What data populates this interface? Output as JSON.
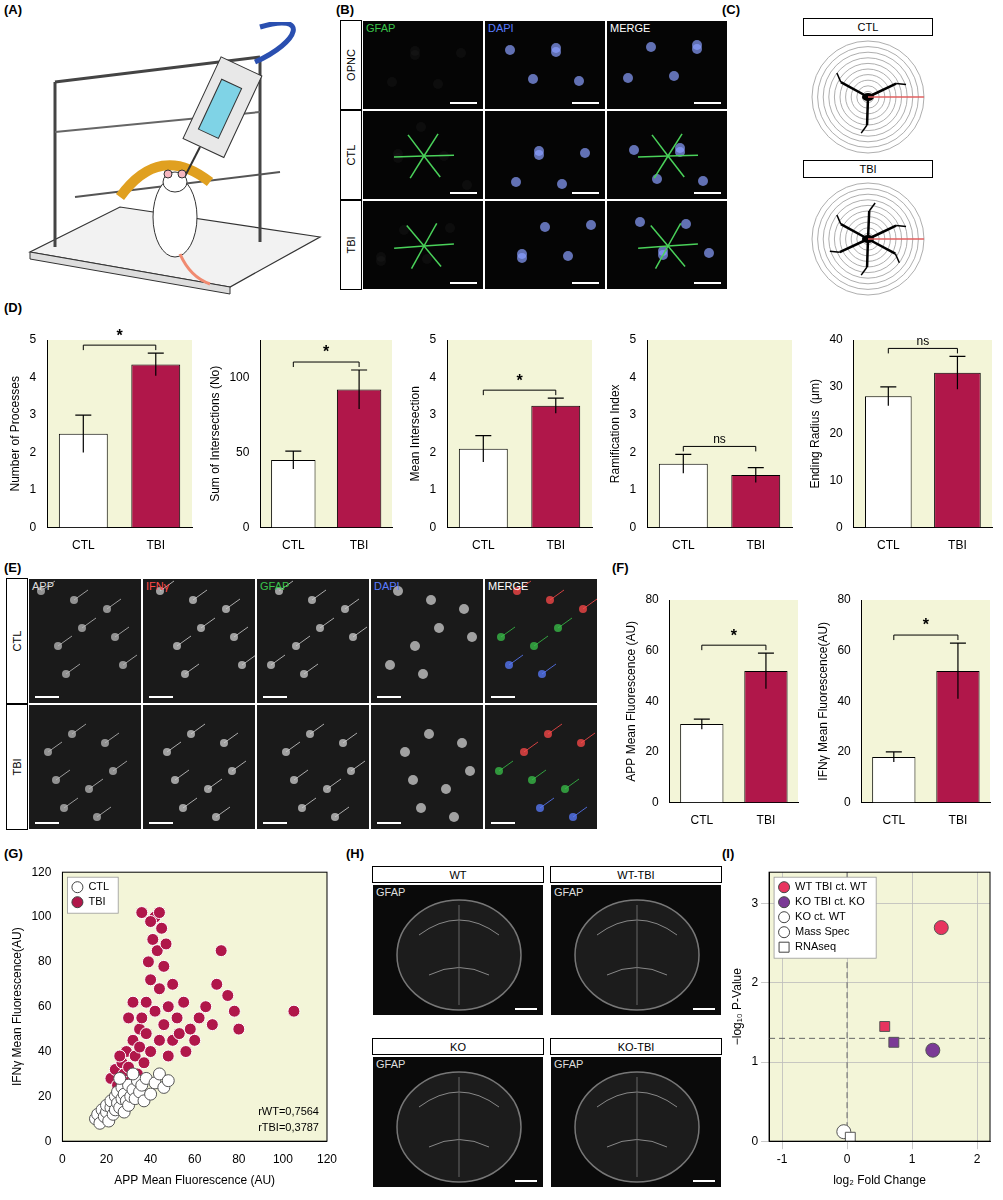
{
  "figure": {
    "A": {
      "label": "(A)"
    },
    "B": {
      "label": "(B)",
      "columns": [
        "GFAP",
        "DAPI",
        "MERGE"
      ],
      "rows": [
        "OPNC",
        "CTL",
        "TBI"
      ]
    },
    "C": {
      "label": "(C)",
      "rows": [
        "CTL",
        "TBI"
      ]
    },
    "D": {
      "label": "(D)"
    },
    "E": {
      "label": "(E)",
      "columns": [
        "APP",
        "IFNγ",
        "GFAP",
        "DAPI",
        "MERGE"
      ],
      "rows": [
        "CTL",
        "TBI"
      ]
    },
    "F": {
      "label": "(F)"
    },
    "G": {
      "label": "(G)"
    },
    "H": {
      "label": "(H)",
      "images": [
        {
          "title": "WT",
          "stain": "GFAP"
        },
        {
          "title": "WT-TBI",
          "stain": "GFAP"
        },
        {
          "title": "KO",
          "stain": "GFAP"
        },
        {
          "title": "KO-TBI",
          "stain": "GFAP"
        }
      ]
    },
    "I": {
      "label": "(I)"
    }
  },
  "chart_data": [
    {
      "panel": "D",
      "type": "bar",
      "y_label": "Number of Processes",
      "categories": [
        "CTL",
        "TBI"
      ],
      "values": [
        2.5,
        4.35
      ],
      "errors": [
        0.5,
        0.3
      ],
      "colors": [
        "#ffffff",
        "#b0174a"
      ],
      "ylim": [
        0,
        5
      ],
      "yticks": [
        0,
        1,
        2,
        3,
        4,
        5
      ],
      "grid": false,
      "annotation": "*"
    },
    {
      "panel": "D",
      "type": "bar",
      "y_label": "Sum of Intersections (No)",
      "categories": [
        "CTL",
        "TBI"
      ],
      "values": [
        45,
        92
      ],
      "errors": [
        6,
        13
      ],
      "colors": [
        "#ffffff",
        "#b0174a"
      ],
      "ylim": [
        0,
        125
      ],
      "yticks": [
        0,
        50,
        100
      ],
      "grid": false,
      "annotation": "*"
    },
    {
      "panel": "D",
      "type": "bar",
      "y_label": "Mean Intersection",
      "categories": [
        "CTL",
        "TBI"
      ],
      "values": [
        2.1,
        3.25
      ],
      "errors": [
        0.35,
        0.2
      ],
      "colors": [
        "#ffffff",
        "#b0174a"
      ],
      "ylim": [
        0,
        5
      ],
      "yticks": [
        0,
        1,
        2,
        3,
        4,
        5
      ],
      "grid": false,
      "annotation": "*"
    },
    {
      "panel": "D",
      "type": "bar",
      "y_label": "Ramification Index",
      "categories": [
        "CTL",
        "TBI"
      ],
      "values": [
        1.7,
        1.4
      ],
      "errors": [
        0.25,
        0.2
      ],
      "colors": [
        "#ffffff",
        "#b0174a"
      ],
      "ylim": [
        0,
        5
      ],
      "yticks": [
        0,
        1,
        2,
        3,
        4,
        5
      ],
      "grid": false,
      "annotation": "ns"
    },
    {
      "panel": "D",
      "type": "bar",
      "y_label": "Ending Radius  (μm)",
      "categories": [
        "CTL",
        "TBI"
      ],
      "values": [
        28,
        33
      ],
      "errors": [
        2,
        3.5
      ],
      "colors": [
        "#ffffff",
        "#b0174a"
      ],
      "ylim": [
        0,
        40
      ],
      "yticks": [
        0,
        10,
        20,
        30,
        40
      ],
      "grid": false,
      "annotation": "ns"
    },
    {
      "panel": "F",
      "type": "bar",
      "y_label": "APP Mean Fluorescence (AU)",
      "categories": [
        "CTL",
        "TBI"
      ],
      "values": [
        31,
        52
      ],
      "errors": [
        2,
        7
      ],
      "colors": [
        "#ffffff",
        "#b0174a"
      ],
      "ylim": [
        0,
        80
      ],
      "yticks": [
        0,
        20,
        40,
        60,
        80
      ],
      "grid": false,
      "annotation": "*"
    },
    {
      "panel": "F",
      "type": "bar",
      "y_label": "IFNγ Mean Fluorescence(AU)",
      "categories": [
        "CTL",
        "TBI"
      ],
      "values": [
        18,
        52
      ],
      "errors": [
        2,
        11
      ],
      "colors": [
        "#ffffff",
        "#b0174a"
      ],
      "ylim": [
        0,
        80
      ],
      "yticks": [
        0,
        20,
        40,
        60,
        80
      ],
      "grid": false,
      "annotation": "*"
    },
    {
      "panel": "G",
      "type": "scatter",
      "x_label": "APP Mean Fluorescence (AU)",
      "y_label": "IFNγ Mean Fluorescence(AU)",
      "xlim": [
        0,
        120
      ],
      "xticks": [
        0,
        20,
        40,
        60,
        80,
        100,
        120
      ],
      "ylim": [
        0,
        120
      ],
      "yticks": [
        0,
        20,
        40,
        60,
        80,
        100,
        120
      ],
      "grid": false,
      "legend": "upper left",
      "annotations": [
        "rWT=0,7564",
        "rTBI=0,3787"
      ],
      "series": [
        {
          "name": "CTL",
          "color": "#ffffff",
          "x": [
            15,
            16,
            17,
            18,
            19,
            20,
            20,
            21,
            22,
            22,
            23,
            24,
            24,
            25,
            25,
            26,
            27,
            27,
            28,
            28,
            29,
            30,
            30,
            31,
            32,
            33,
            34,
            35,
            36,
            37,
            38,
            40,
            42,
            44,
            46,
            48,
            26,
            32
          ],
          "y": [
            10,
            12,
            8,
            14,
            11,
            13,
            16,
            9,
            15,
            18,
            12,
            20,
            14,
            17,
            22,
            15,
            19,
            24,
            13,
            21,
            18,
            25,
            16,
            20,
            23,
            19,
            27,
            22,
            25,
            18,
            28,
            21,
            26,
            30,
            24,
            27,
            28,
            30
          ]
        },
        {
          "name": "TBI",
          "color": "#b0174a",
          "x": [
            22,
            24,
            25,
            27,
            28,
            29,
            30,
            31,
            32,
            33,
            34,
            35,
            35,
            36,
            37,
            38,
            38,
            39,
            40,
            40,
            41,
            42,
            42,
            43,
            44,
            44,
            45,
            46,
            46,
            47,
            48,
            48,
            50,
            50,
            52,
            53,
            55,
            56,
            58,
            60,
            62,
            65,
            68,
            70,
            72,
            75,
            78,
            80,
            105,
            36,
            40,
            44,
            30,
            32,
            26
          ],
          "y": [
            28,
            32,
            25,
            35,
            30,
            40,
            33,
            27,
            45,
            38,
            30,
            50,
            42,
            55,
            35,
            62,
            48,
            80,
            40,
            72,
            90,
            100,
            58,
            85,
            45,
            68,
            95,
            78,
            52,
            88,
            60,
            38,
            70,
            45,
            55,
            48,
            62,
            40,
            50,
            45,
            55,
            60,
            52,
            70,
            85,
            65,
            58,
            50,
            58,
            102,
            98,
            102,
            55,
            62,
            38
          ]
        }
      ]
    },
    {
      "panel": "I",
      "type": "scatter",
      "x_label": "log₂ Fold Change",
      "y_label": "−log₁₀ P-Value",
      "xlim": [
        -1.2,
        2.2
      ],
      "xticks": [
        -1,
        0,
        1,
        2
      ],
      "ylim": [
        0,
        3.4
      ],
      "yticks": [
        0,
        1,
        2,
        3
      ],
      "grid": true,
      "legend": "upper left",
      "reference_lines": [
        {
          "axis": "y",
          "value": 1.3,
          "line_style": "dashed"
        },
        {
          "axis": "x",
          "value": 0,
          "line_style": "dashed"
        }
      ],
      "series": [
        {
          "name": "WT TBI ct. WT",
          "color": "#e8345f",
          "x": [
            1.45,
            0.58
          ],
          "y": [
            2.7,
            1.45
          ],
          "markers": [
            "circle",
            "square"
          ]
        },
        {
          "name": "KO TBI ct. KO",
          "color": "#7b3a96",
          "x": [
            1.32,
            0.72
          ],
          "y": [
            1.15,
            1.25
          ],
          "markers": [
            "circle",
            "square"
          ]
        },
        {
          "name": "KO ct. WT",
          "color": "#ffffff",
          "x": [
            -0.05,
            0.05
          ],
          "y": [
            0.12,
            0.05
          ],
          "markers": [
            "circle",
            "square"
          ]
        }
      ],
      "marker_legend": [
        {
          "name": "Mass Spec",
          "marker": "circle"
        },
        {
          "name": "RNAseq",
          "marker": "square"
        }
      ]
    }
  ]
}
